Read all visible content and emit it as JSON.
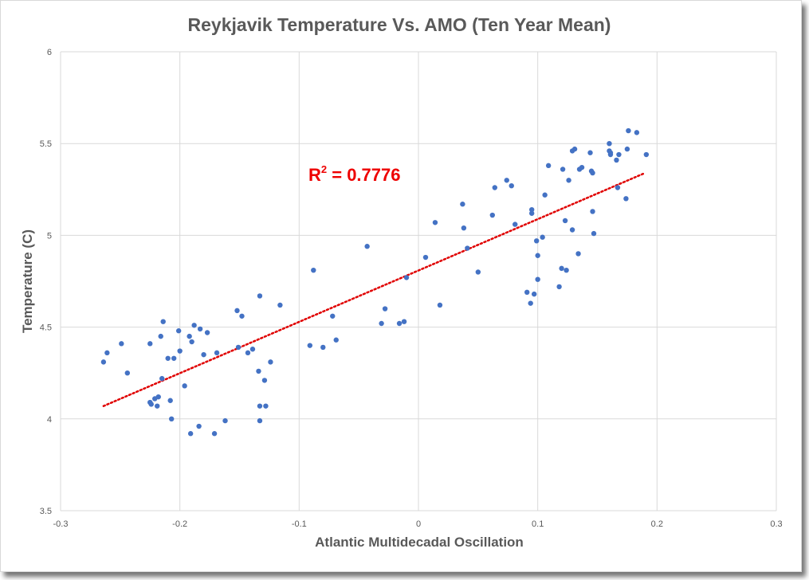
{
  "chart_data": {
    "type": "scatter",
    "title": "Reykjavik Temperature Vs. AMO (Ten Year Mean)",
    "xlabel": "Atlantic Multidecadal Oscillation",
    "ylabel": "Temperature (C)",
    "xlim": [
      -0.3,
      0.3
    ],
    "ylim": [
      3.5,
      6
    ],
    "xticks": [
      -0.3,
      -0.2,
      -0.1,
      0,
      0.1,
      0.2,
      0.3
    ],
    "yticks": [
      3.5,
      4,
      4.5,
      5,
      5.5,
      6
    ],
    "xtick_labels": [
      "-0.3",
      "-0.2",
      "-0.1",
      "0",
      "0.1",
      "0.2",
      "0.3"
    ],
    "ytick_labels": [
      "3.5",
      "4",
      "4.5",
      "5",
      "5.5",
      "6"
    ],
    "grid": true,
    "colors": {
      "points": "#4472c4",
      "trendline": "#e00000",
      "annotation": "#ee0000",
      "grid": "#d9d9d9"
    },
    "r2_label": {
      "base": "R",
      "sup": "2",
      "rest": " = 0.7776"
    },
    "trendline": {
      "style": "dotted",
      "x": [
        -0.264,
        0.19
      ],
      "y": [
        4.07,
        5.34
      ]
    },
    "points": {
      "x": [
        -0.264,
        -0.261,
        -0.249,
        -0.244,
        -0.225,
        -0.225,
        -0.224,
        -0.221,
        -0.219,
        -0.218,
        -0.216,
        -0.215,
        -0.214,
        -0.21,
        -0.208,
        -0.207,
        -0.205,
        -0.201,
        -0.2,
        -0.196,
        -0.192,
        -0.191,
        -0.19,
        -0.188,
        -0.184,
        -0.183,
        -0.18,
        -0.177,
        -0.171,
        -0.169,
        -0.162,
        -0.152,
        -0.151,
        -0.148,
        -0.143,
        -0.139,
        -0.134,
        -0.133,
        -0.133,
        -0.133,
        -0.129,
        -0.128,
        -0.124,
        -0.116,
        -0.091,
        -0.088,
        -0.08,
        -0.072,
        -0.069,
        -0.043,
        -0.031,
        -0.028,
        -0.016,
        -0.012,
        -0.01,
        0.006,
        0.014,
        0.018,
        0.037,
        0.038,
        0.041,
        0.05,
        0.062,
        0.064,
        0.074,
        0.078,
        0.081,
        0.091,
        0.094,
        0.095,
        0.095,
        0.097,
        0.099,
        0.1,
        0.1,
        0.104,
        0.106,
        0.109,
        0.118,
        0.12,
        0.121,
        0.123,
        0.124,
        0.126,
        0.129,
        0.129,
        0.131,
        0.134,
        0.135,
        0.137,
        0.144,
        0.145,
        0.146,
        0.146,
        0.147,
        0.16,
        0.16,
        0.161,
        0.161,
        0.166,
        0.167,
        0.168,
        0.174,
        0.175,
        0.176,
        0.183,
        0.191
      ],
      "y": [
        4.31,
        4.36,
        4.41,
        4.25,
        4.41,
        4.09,
        4.08,
        4.11,
        4.07,
        4.12,
        4.45,
        4.22,
        4.53,
        4.33,
        4.1,
        4.0,
        4.33,
        4.48,
        4.37,
        4.18,
        4.45,
        3.92,
        4.42,
        4.51,
        3.96,
        4.49,
        4.35,
        4.47,
        3.92,
        4.36,
        3.99,
        4.59,
        4.39,
        4.56,
        4.36,
        4.38,
        4.26,
        4.67,
        4.07,
        3.99,
        4.21,
        4.07,
        4.31,
        4.62,
        4.4,
        4.81,
        4.39,
        4.56,
        4.43,
        4.94,
        4.52,
        4.6,
        4.52,
        4.53,
        4.77,
        4.88,
        5.07,
        4.62,
        5.17,
        5.04,
        4.93,
        4.8,
        5.11,
        5.26,
        5.3,
        5.27,
        5.06,
        4.69,
        4.63,
        5.12,
        5.14,
        4.68,
        4.97,
        4.89,
        4.76,
        4.99,
        5.22,
        5.38,
        4.72,
        4.82,
        5.36,
        5.08,
        4.81,
        5.3,
        5.03,
        5.46,
        5.47,
        4.9,
        5.36,
        5.37,
        5.45,
        5.35,
        5.13,
        5.34,
        5.01,
        5.5,
        5.46,
        5.44,
        5.45,
        5.41,
        5.26,
        5.44,
        5.2,
        5.47,
        5.57,
        5.56,
        5.44
      ]
    }
  }
}
